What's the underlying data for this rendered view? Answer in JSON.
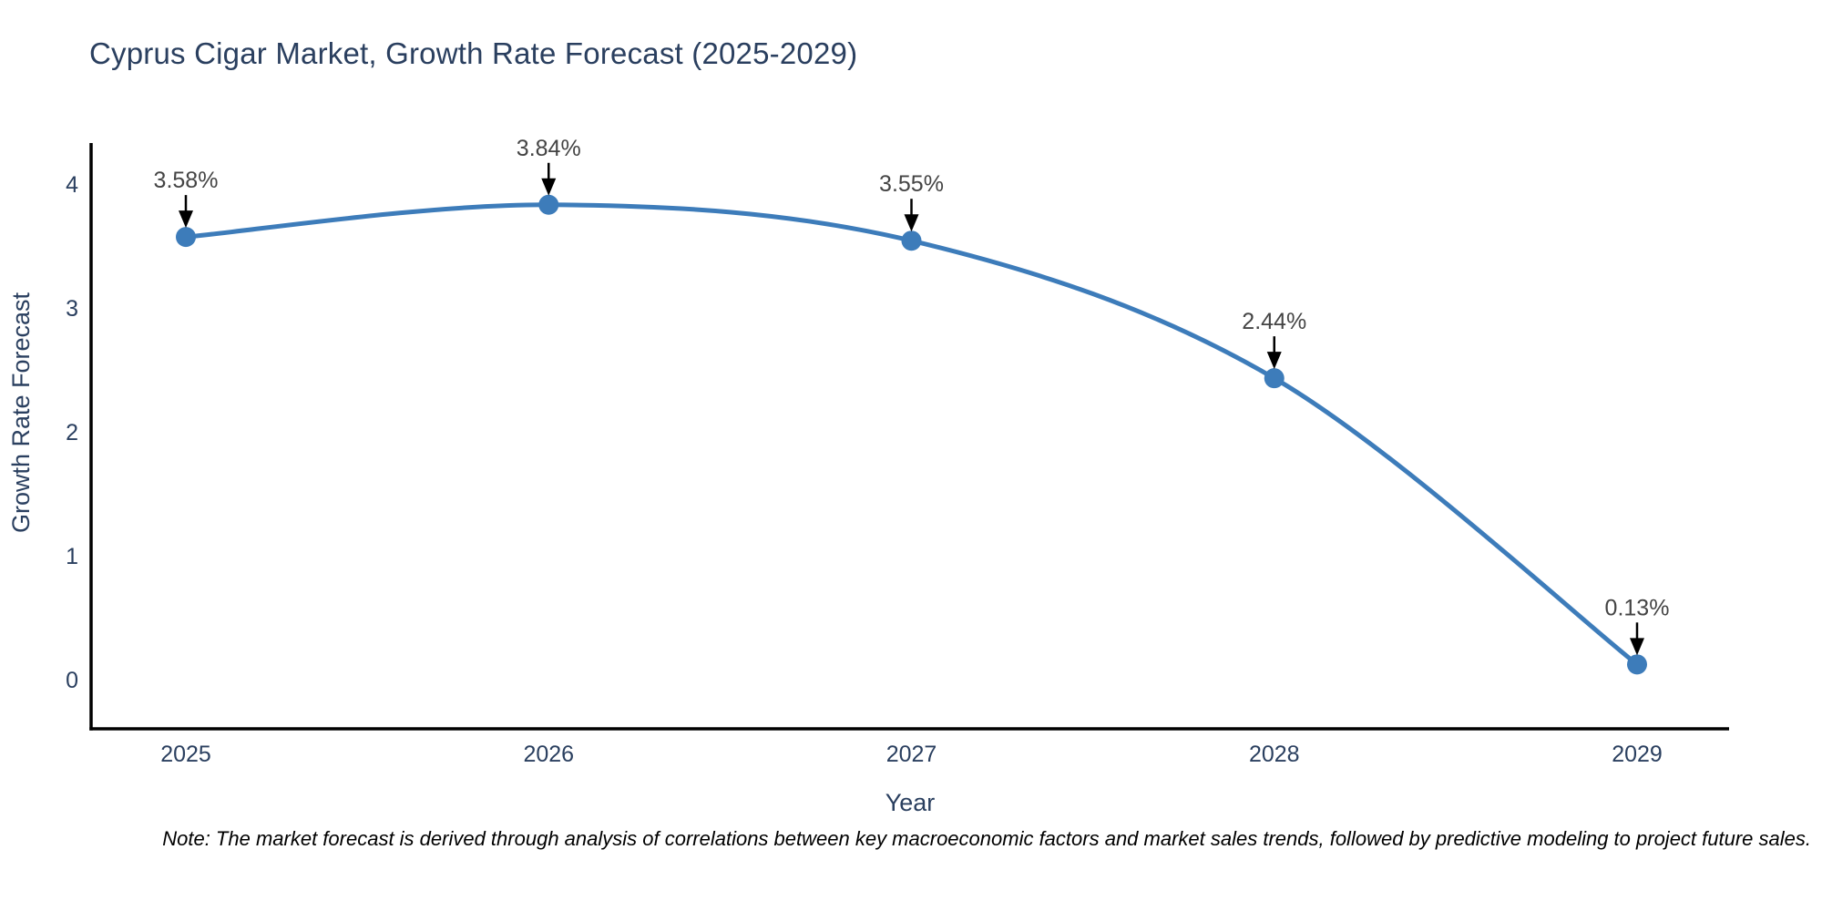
{
  "chart_data": {
    "type": "line",
    "title": "Cyprus Cigar Market, Growth Rate Forecast (2025-2029)",
    "xlabel": "Year",
    "ylabel": "Growth Rate Forecast",
    "categories": [
      "2025",
      "2026",
      "2027",
      "2028",
      "2029"
    ],
    "values": [
      3.58,
      3.84,
      3.55,
      2.44,
      0.13
    ],
    "point_labels": [
      "3.58%",
      "3.84%",
      "3.55%",
      "2.44%",
      "0.13%"
    ],
    "ylim": [
      0,
      4
    ],
    "yticks": [
      0,
      1,
      2,
      3,
      4
    ],
    "grid": false,
    "legend_position": "none",
    "line_color": "#3d7cba",
    "marker_color": "#3d7cba",
    "axis_color": "#000000",
    "axis_text_color": "#2a3f5f",
    "annotation_text_color": "#444444",
    "annotation_arrow_color": "#000000"
  },
  "note": "Note: The market forecast is derived through analysis of correlations between key macroeconomic factors and market sales trends, followed by predictive modeling to project future sales."
}
